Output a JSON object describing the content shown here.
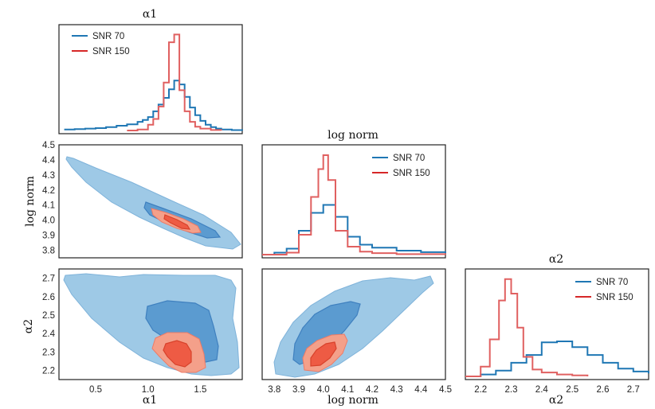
{
  "chart_data": [
    {
      "panel": "hist-alpha1",
      "type": "line",
      "title": "α1",
      "x_range": [
        0.15,
        1.9
      ],
      "legend": {
        "placement": "top-left",
        "entries": [
          "SNR 70",
          "SNR 150"
        ]
      },
      "series": [
        {
          "name": "SNR 70",
          "color": "#1f77b4",
          "x": [
            0.2,
            0.3,
            0.4,
            0.5,
            0.6,
            0.7,
            0.8,
            0.9,
            0.95,
            1.0,
            1.05,
            1.1,
            1.15,
            1.2,
            1.25,
            1.3,
            1.35,
            1.4,
            1.45,
            1.5,
            1.55,
            1.6,
            1.65,
            1.7,
            1.8,
            1.9
          ],
          "y": [
            0.01,
            0.015,
            0.02,
            0.025,
            0.035,
            0.05,
            0.065,
            0.09,
            0.11,
            0.14,
            0.2,
            0.27,
            0.34,
            0.43,
            0.52,
            0.48,
            0.35,
            0.24,
            0.16,
            0.1,
            0.06,
            0.035,
            0.02,
            0.01,
            0.004,
            0.0
          ]
        },
        {
          "name": "SNR 150",
          "color": "#d62728",
          "x": [
            0.8,
            0.9,
            1.0,
            1.05,
            1.1,
            1.15,
            1.2,
            1.25,
            1.3,
            1.35,
            1.4,
            1.45,
            1.5,
            1.6,
            1.7
          ],
          "y": [
            0.0,
            0.01,
            0.06,
            0.12,
            0.25,
            0.5,
            0.92,
            1.0,
            0.42,
            0.2,
            0.09,
            0.04,
            0.02,
            0.005,
            0.0
          ]
        }
      ]
    },
    {
      "panel": "contour-alpha1-lognorm",
      "type": "contour",
      "xlabel": "",
      "ylabel": "log norm",
      "x_range": [
        0.15,
        1.9
      ],
      "y_range": [
        3.75,
        4.5
      ],
      "y_ticks": [
        "3.8",
        "3.9",
        "4.0",
        "4.1",
        "4.2",
        "4.3",
        "4.4",
        "4.5"
      ]
    },
    {
      "panel": "hist-lognorm",
      "type": "line",
      "title": "log norm",
      "x_range": [
        3.75,
        4.5
      ],
      "legend": {
        "placement": "top-right",
        "entries": [
          "SNR 70",
          "SNR 150"
        ]
      },
      "series": [
        {
          "name": "SNR 70",
          "color": "#1f77b4",
          "x": [
            3.75,
            3.8,
            3.85,
            3.9,
            3.95,
            4.0,
            4.05,
            4.1,
            4.15,
            4.2,
            4.3,
            4.4,
            4.5
          ],
          "y": [
            0.0,
            0.02,
            0.06,
            0.24,
            0.42,
            0.5,
            0.38,
            0.18,
            0.1,
            0.07,
            0.04,
            0.025,
            0.015
          ]
        },
        {
          "name": "SNR 150",
          "color": "#d62728",
          "x": [
            3.75,
            3.85,
            3.9,
            3.95,
            3.98,
            4.0,
            4.02,
            4.05,
            4.1,
            4.15,
            4.2,
            4.3,
            4.5
          ],
          "y": [
            0.0,
            0.02,
            0.2,
            0.58,
            0.86,
            1.0,
            0.75,
            0.24,
            0.08,
            0.03,
            0.015,
            0.005,
            0.0
          ]
        }
      ]
    },
    {
      "panel": "contour-alpha1-alpha2",
      "type": "contour",
      "xlabel": "α1",
      "ylabel": "α2",
      "x_range": [
        0.15,
        1.9
      ],
      "y_range": [
        2.15,
        2.75
      ],
      "x_ticks": [
        "0.5",
        "1.0",
        "1.5"
      ],
      "y_ticks": [
        "2.2",
        "2.3",
        "2.4",
        "2.5",
        "2.6",
        "2.7"
      ]
    },
    {
      "panel": "contour-lognorm-alpha2",
      "type": "contour",
      "xlabel": "log norm",
      "ylabel": "",
      "x_range": [
        3.75,
        4.5
      ],
      "y_range": [
        2.15,
        2.75
      ],
      "x_ticks": [
        "3.8",
        "3.9",
        "4.0",
        "4.1",
        "4.2",
        "4.3",
        "4.4",
        "4.5"
      ]
    },
    {
      "panel": "hist-alpha2",
      "type": "line",
      "title": "α2",
      "xlabel": "α2",
      "x_range": [
        2.15,
        2.75
      ],
      "x_ticks": [
        "2.2",
        "2.3",
        "2.4",
        "2.5",
        "2.6",
        "2.7"
      ],
      "legend": {
        "placement": "top-right",
        "entries": [
          "SNR 70",
          "SNR 150"
        ]
      },
      "series": [
        {
          "name": "SNR 70",
          "color": "#1f77b4",
          "x": [
            2.15,
            2.2,
            2.25,
            2.3,
            2.35,
            2.4,
            2.45,
            2.5,
            2.55,
            2.6,
            2.65,
            2.7,
            2.75
          ],
          "y": [
            0.0,
            0.02,
            0.06,
            0.14,
            0.22,
            0.35,
            0.36,
            0.3,
            0.22,
            0.14,
            0.08,
            0.05,
            0.03
          ]
        },
        {
          "name": "SNR 150",
          "color": "#d62728",
          "x": [
            2.15,
            2.2,
            2.23,
            2.26,
            2.28,
            2.3,
            2.32,
            2.34,
            2.37,
            2.4,
            2.45,
            2.5,
            2.55
          ],
          "y": [
            0.0,
            0.1,
            0.38,
            0.78,
            1.0,
            0.85,
            0.5,
            0.2,
            0.07,
            0.04,
            0.02,
            0.01,
            0.0
          ]
        }
      ]
    }
  ],
  "colors": {
    "snr70": "#1f77b4",
    "snr70_outer": "#9ec9e6",
    "snr70_inner": "#5b9bd0",
    "snr150": "#d62728",
    "snr150_outer": "#f4a08a",
    "snr150_inner": "#ee5b44"
  },
  "legend_labels": [
    "SNR 70",
    "SNR 150"
  ],
  "y_ticks_lognorm": [
    "3.8",
    "3.9",
    "4.0",
    "4.1",
    "4.2",
    "4.3",
    "4.4",
    "4.5"
  ],
  "x_ticks_alpha1": [
    "0.5",
    "1.0",
    "1.5"
  ]
}
